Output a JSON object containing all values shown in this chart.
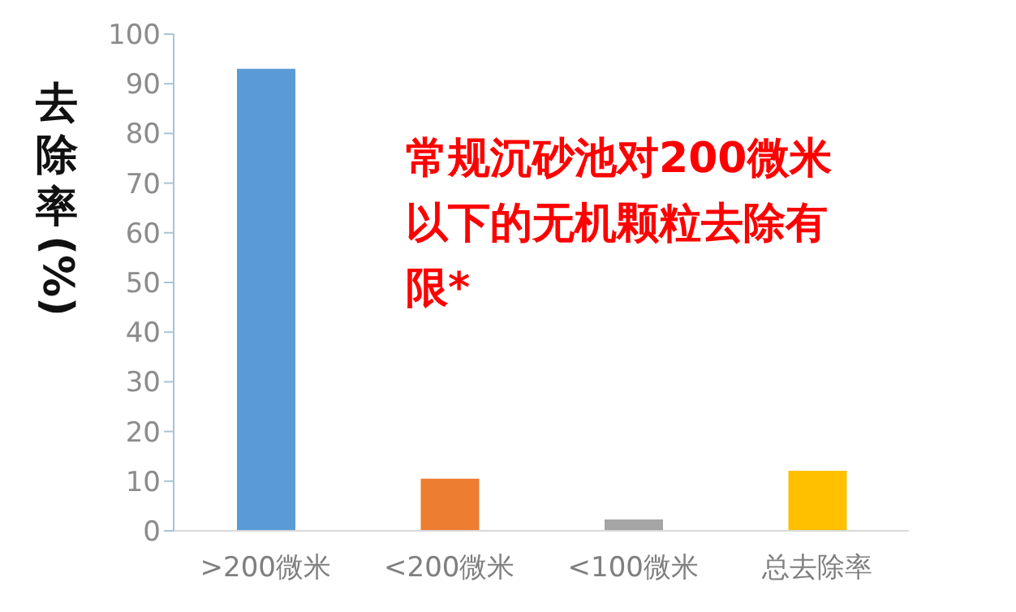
{
  "chart_data": {
    "type": "bar",
    "ylabel": "去除率(%)",
    "categories": [
      ">200微米",
      "<200微米",
      "<100微米",
      "总去除率"
    ],
    "values": [
      93,
      10.5,
      2.3,
      12.1
    ],
    "colors": [
      "#5b9bd5",
      "#ed7d31",
      "#a5a5a5",
      "#ffc000"
    ],
    "ylim": [
      0,
      100
    ],
    "yticks": [
      0,
      10,
      20,
      30,
      40,
      50,
      60,
      70,
      80,
      90,
      100
    ],
    "annotations": [
      "常规沉砂池对200微米以下的无机颗粒去除有限*"
    ],
    "grid": false,
    "legend": false
  }
}
